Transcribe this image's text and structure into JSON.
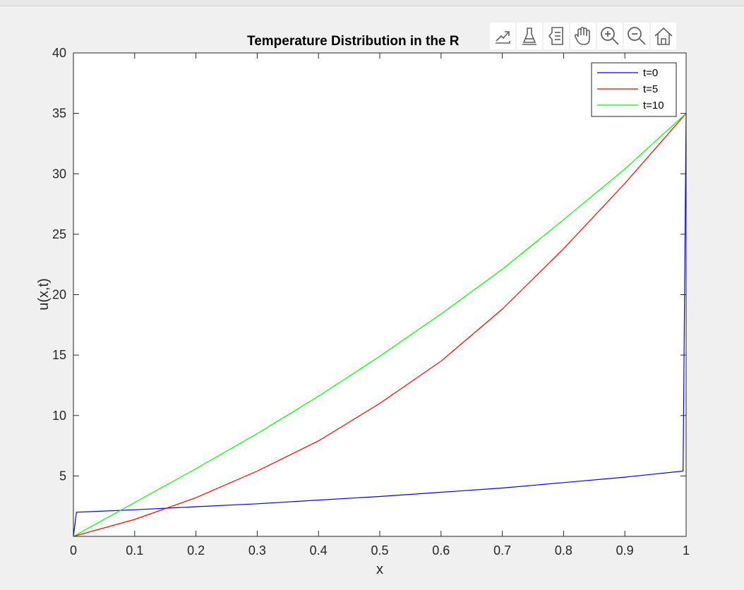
{
  "toolbar": {
    "icons": [
      "export-icon",
      "brush-icon",
      "legend-toggle-icon",
      "pan-hand-icon",
      "zoom-in-icon",
      "zoom-out-icon",
      "home-icon"
    ]
  },
  "colors": {
    "t0": "#0000ff",
    "t5": "#ff0000",
    "t10": "#00ff00"
  },
  "chart_data": {
    "type": "line",
    "title": "Temperature Distribution in the R",
    "xlabel": "x",
    "ylabel": "u(x,t)",
    "xlim": [
      0,
      1
    ],
    "ylim": [
      0,
      40
    ],
    "xticks": [
      0,
      0.1,
      0.2,
      0.3,
      0.4,
      0.5,
      0.6,
      0.7,
      0.8,
      0.9,
      1
    ],
    "xtick_labels": [
      "0",
      "0.1",
      "0.2",
      "0.3",
      "0.4",
      "0.5",
      "0.6",
      "0.7",
      "0.8",
      "0.9",
      "1"
    ],
    "yticks": [
      5,
      10,
      15,
      20,
      25,
      30,
      35,
      40
    ],
    "ytick_labels": [
      "5",
      "10",
      "15",
      "20",
      "25",
      "30",
      "35",
      "40"
    ],
    "grid": false,
    "legend": "top-right",
    "series": [
      {
        "name": "t=0",
        "color": "#0000ff",
        "x": [
          0,
          0.005,
          0.1,
          0.2,
          0.3,
          0.4,
          0.5,
          0.6,
          0.7,
          0.8,
          0.9,
          0.995,
          1
        ],
        "y": [
          0,
          2.0,
          2.2,
          2.45,
          2.7,
          3.0,
          3.3,
          3.65,
          4.0,
          4.45,
          4.9,
          5.4,
          35
        ]
      },
      {
        "name": "t=5",
        "color": "#ff0000",
        "x": [
          0,
          0.1,
          0.2,
          0.3,
          0.4,
          0.5,
          0.6,
          0.7,
          0.8,
          0.9,
          1
        ],
        "y": [
          0,
          1.4,
          3.2,
          5.4,
          7.9,
          11.0,
          14.5,
          18.8,
          23.8,
          29.2,
          35
        ]
      },
      {
        "name": "t=10",
        "color": "#00ff00",
        "x": [
          0,
          0.1,
          0.2,
          0.3,
          0.4,
          0.5,
          0.6,
          0.7,
          0.8,
          0.9,
          1
        ],
        "y": [
          0,
          2.8,
          5.6,
          8.5,
          11.6,
          14.9,
          18.4,
          22.1,
          26.2,
          30.4,
          35
        ]
      }
    ]
  }
}
